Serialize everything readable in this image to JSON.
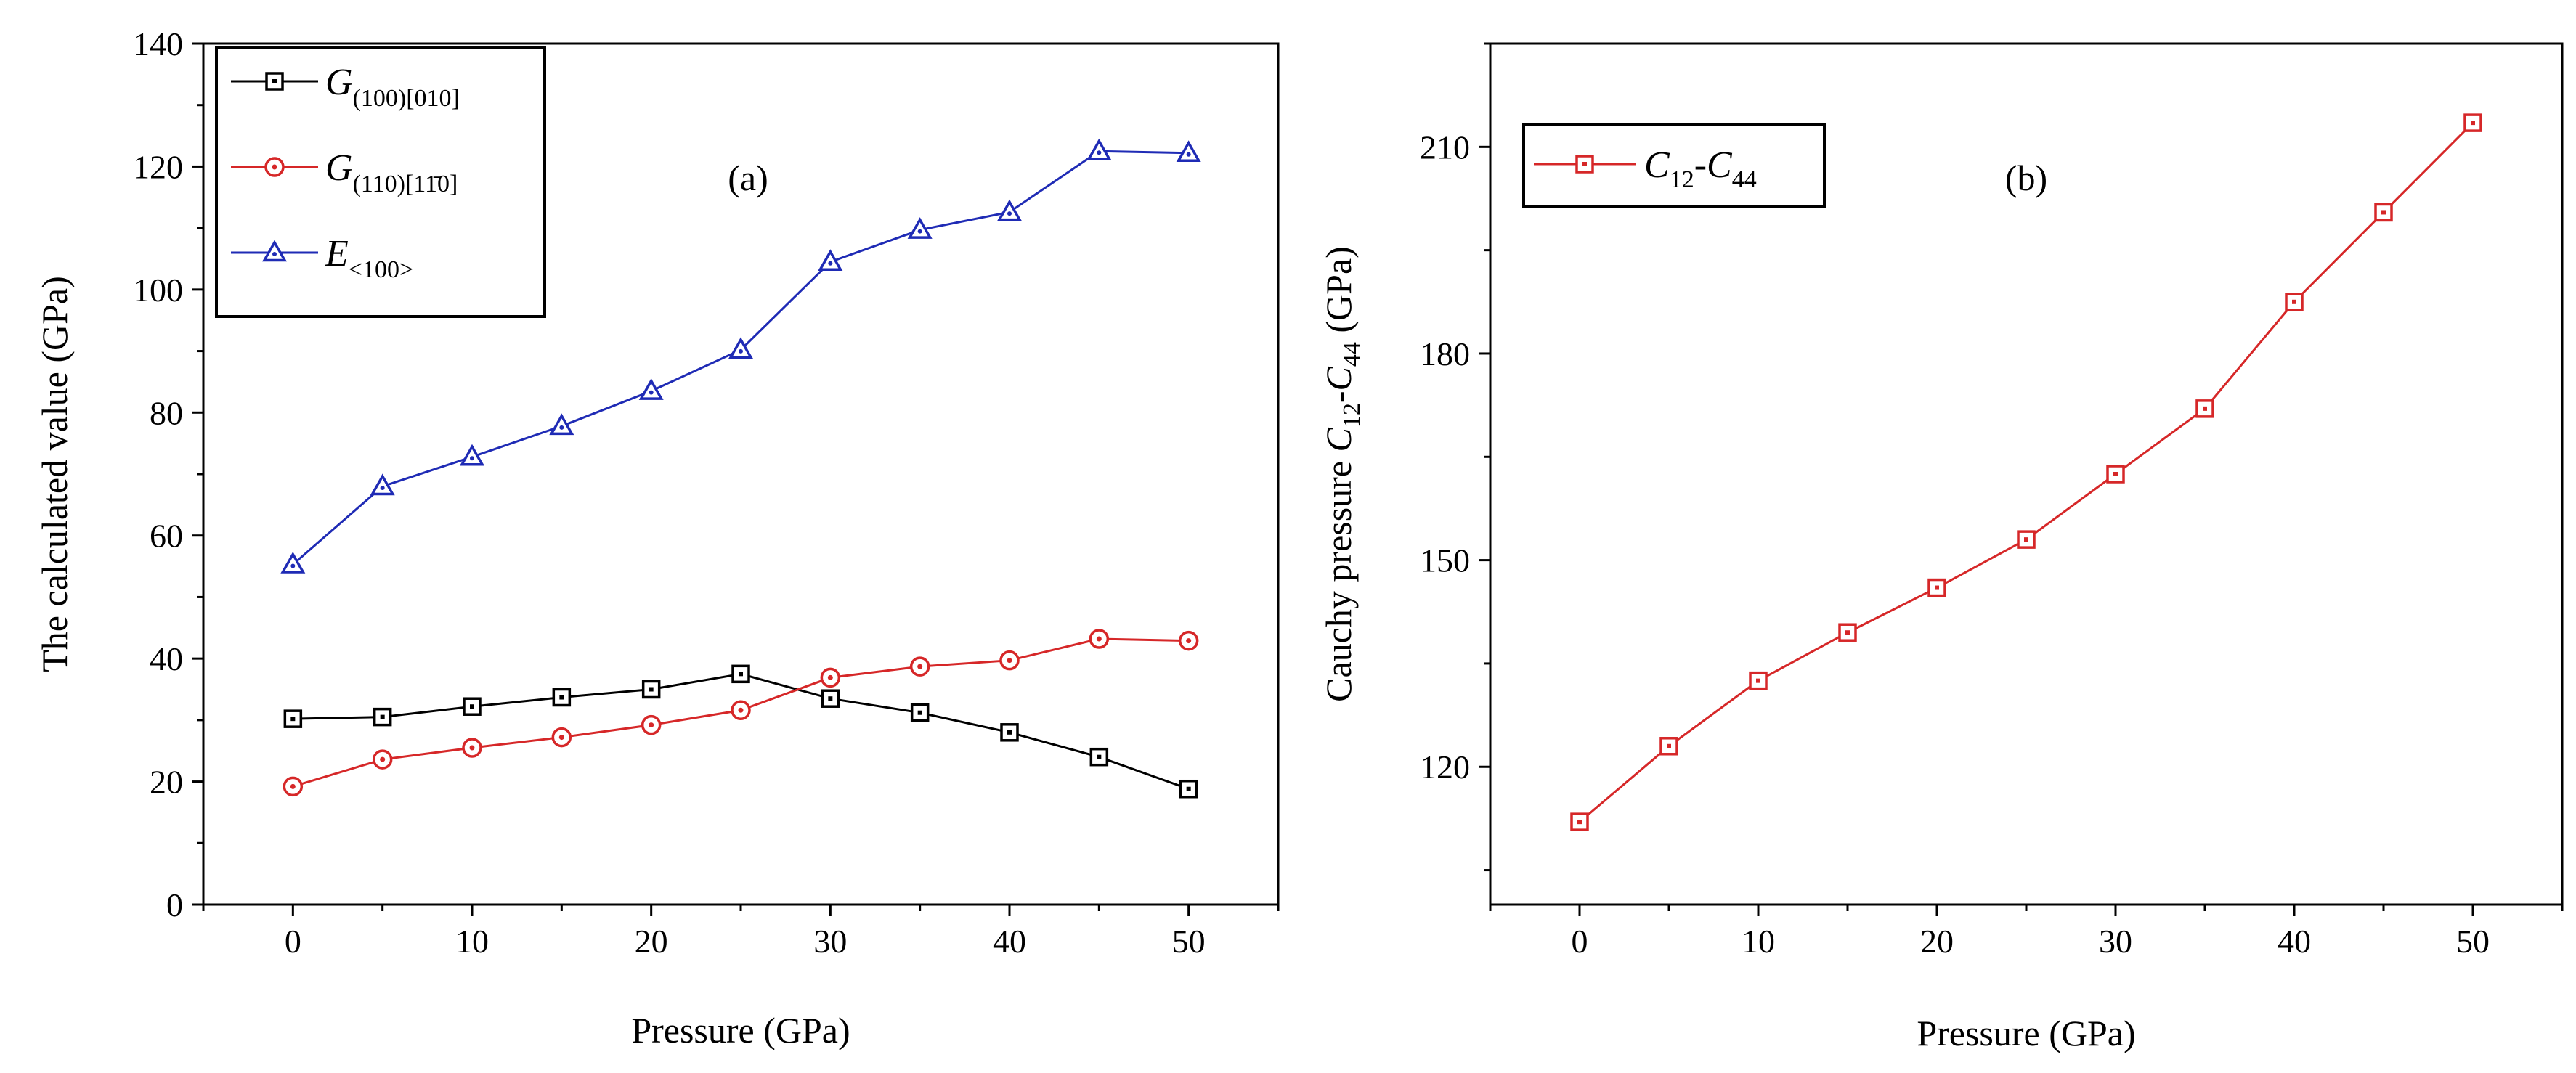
{
  "chart_data": [
    {
      "type": "line",
      "panel_label": "(a)",
      "xlabel": "Pressure (GPa)",
      "ylabel": "The calculated value (GPa)",
      "xlim": [
        -5,
        55
      ],
      "ylim": [
        0,
        140
      ],
      "xticks": [
        0,
        10,
        20,
        30,
        40,
        50
      ],
      "yticks": [
        0,
        20,
        40,
        60,
        80,
        100,
        120,
        140
      ],
      "x": [
        0,
        5,
        10,
        15,
        20,
        25,
        30,
        35,
        40,
        45,
        50
      ],
      "series": [
        {
          "name": "G(100)[010]",
          "label_main": "G",
          "label_sub": "(100)[010]",
          "color": "#000000",
          "marker": "square",
          "values": [
            30.2,
            30.5,
            32.2,
            33.7,
            35.0,
            37.5,
            33.5,
            31.2,
            28.0,
            24.0,
            18.8
          ]
        },
        {
          "name": "G(110)[1̄10]",
          "label_main": "G",
          "label_sub": "(110)[11̄0]",
          "color": "#d62728",
          "marker": "circle",
          "values": [
            19.2,
            23.6,
            25.5,
            27.2,
            29.2,
            31.6,
            36.9,
            38.7,
            39.7,
            43.2,
            42.9
          ]
        },
        {
          "name": "E<100>",
          "label_main": "E",
          "label_sub": "<100>",
          "color": "#1f2bb5",
          "marker": "triangle",
          "values": [
            55.3,
            68.0,
            72.8,
            77.8,
            83.5,
            90.2,
            104.5,
            109.7,
            112.6,
            122.5,
            122.2
          ]
        }
      ],
      "legend": "top-left"
    },
    {
      "type": "line",
      "panel_label": "(b)",
      "xlabel": "Pressure (GPa)",
      "ylabel": "Cauchy pressure C12-C44 (GPa)",
      "ylabel_parts": {
        "prefix": "Cauchy pressure ",
        "c": "C",
        "sub1": "12",
        "dash": "-",
        "sub2": "44",
        "suffix": " (GPa)"
      },
      "xlim": [
        -5,
        55
      ],
      "ylim": [
        100,
        225
      ],
      "xticks": [
        0,
        10,
        20,
        30,
        40,
        50
      ],
      "yticks": [
        120,
        150,
        180,
        210
      ],
      "x": [
        0,
        5,
        10,
        15,
        20,
        25,
        30,
        35,
        40,
        45,
        50
      ],
      "series": [
        {
          "name": "C12-C44",
          "label_main": "C",
          "label_sub": "12",
          "label_dash": "-",
          "label_main2": "C",
          "label_sub2": "44",
          "color": "#d62728",
          "marker": "square",
          "values": [
            112.0,
            123.0,
            132.5,
            139.5,
            146.0,
            153.0,
            162.5,
            172.0,
            187.5,
            200.5,
            213.5
          ]
        }
      ],
      "legend": "top-left"
    }
  ]
}
